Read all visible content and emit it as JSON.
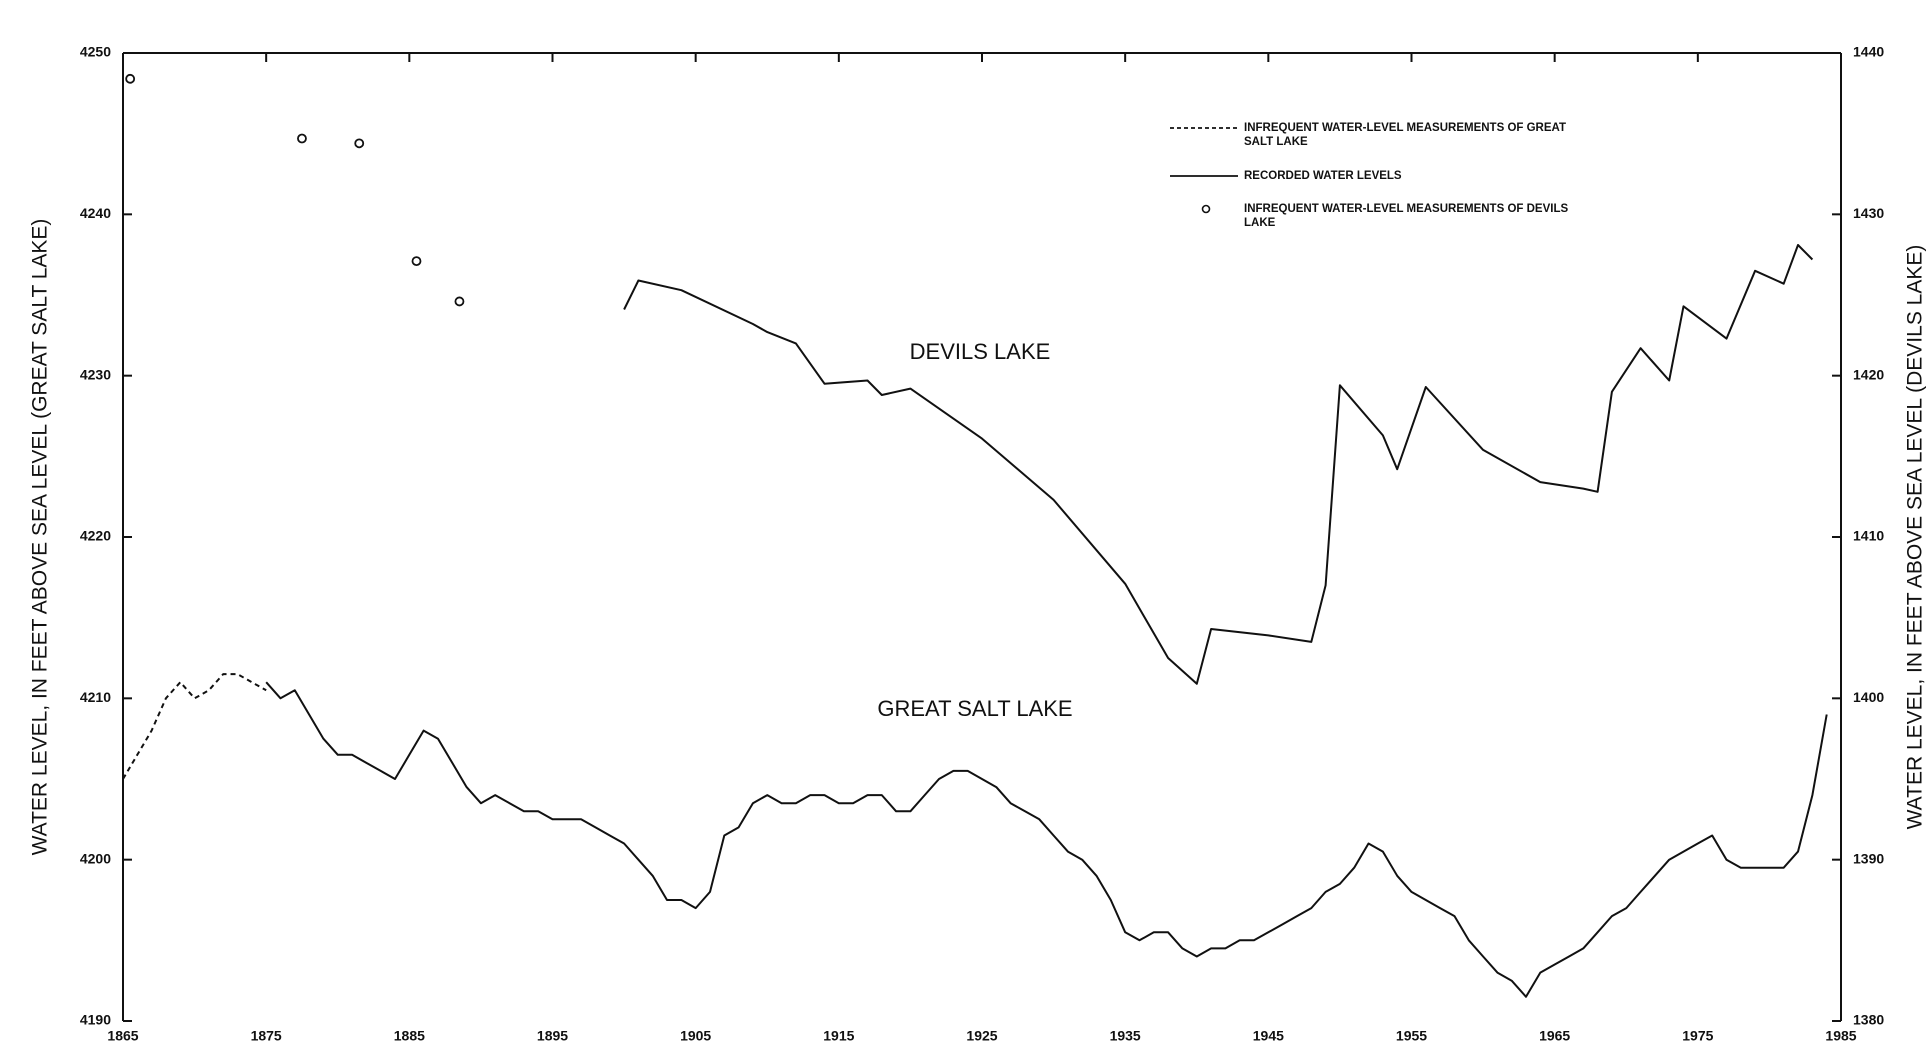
{
  "chart_data": {
    "type": "line",
    "ylabel": "WATER LEVEL, IN FEET ABOVE SEA LEVEL (GREAT SALT LAKE)",
    "y2label": "WATER LEVEL, IN FEET ABOVE SEA LEVEL (DEVILS LAKE)",
    "xlim": [
      1865,
      1985
    ],
    "xticks": [
      1865,
      1875,
      1885,
      1895,
      1905,
      1915,
      1925,
      1935,
      1945,
      1955,
      1965,
      1975,
      1985
    ],
    "ylim": [
      4190,
      4250
    ],
    "yticks": [
      4190,
      4200,
      4210,
      4220,
      4230,
      4240,
      4250
    ],
    "y2lim": [
      1380,
      1440
    ],
    "y2ticks": [
      1380,
      1390,
      1400,
      1410,
      1420,
      1430,
      1440
    ],
    "legend_position": "upper right",
    "color": "#111111",
    "annotations": [
      "DEVILS LAKE",
      "GREAT SALT LAKE"
    ],
    "legend": [
      {
        "label": "INFREQUENT WATER-LEVEL MEASUREMENTS OF GREAT SALT LAKE",
        "style": "dashed"
      },
      {
        "label": "RECORDED WATER LEVELS",
        "style": "solid"
      },
      {
        "label": "INFREQUENT WATER-LEVEL MEASUREMENTS OF DEVILS LAKE",
        "style": "circle"
      }
    ],
    "series": [
      {
        "style": "dashed",
        "axis": "y",
        "x": [
          1865,
          1866,
          1867,
          1868,
          1869,
          1870,
          1871,
          1872,
          1873,
          1874,
          1875
        ],
        "values": [
          4205,
          4206.5,
          4208,
          4210,
          4211,
          4210,
          4210.5,
          4211.5,
          4211.5,
          4211,
          4210.5
        ]
      },
      {
        "style": "solid",
        "axis": "y",
        "x": [
          1875,
          1876,
          1877,
          1878,
          1879,
          1880,
          1881,
          1882,
          1883,
          1884,
          1885,
          1886,
          1887,
          1888,
          1889,
          1890,
          1891,
          1892,
          1893,
          1894,
          1895,
          1896,
          1897,
          1898,
          1899,
          1900,
          1901,
          1902,
          1903,
          1904,
          1905,
          1906,
          1907,
          1908,
          1909,
          1910,
          1911,
          1912,
          1913,
          1914,
          1915,
          1916,
          1917,
          1918,
          1919,
          1920,
          1921,
          1922,
          1923,
          1924,
          1925,
          1926,
          1927,
          1928,
          1929,
          1930,
          1931,
          1932,
          1933,
          1934,
          1935,
          1936,
          1937,
          1938,
          1939,
          1940,
          1941,
          1942,
          1943,
          1944,
          1945,
          1946,
          1947,
          1948,
          1949,
          1950,
          1951,
          1952,
          1953,
          1954,
          1955,
          1956,
          1957,
          1958,
          1959,
          1960,
          1961,
          1962,
          1963,
          1964,
          1965,
          1966,
          1967,
          1968,
          1969,
          1970,
          1971,
          1972,
          1973,
          1974,
          1975,
          1976,
          1977,
          1978,
          1979,
          1980,
          1981,
          1982,
          1983,
          1984
        ],
        "values": [
          4211,
          4210,
          4210.5,
          4209,
          4207.5,
          4206.5,
          4206.5,
          4206,
          4205.5,
          4205,
          4206.5,
          4208,
          4207.5,
          4206,
          4204.5,
          4203.5,
          4204,
          4203.5,
          4203,
          4203,
          4202.5,
          4202.5,
          4202.5,
          4202,
          4201.5,
          4201,
          4200,
          4199,
          4197.5,
          4197.5,
          4197,
          4198,
          4201.5,
          4202,
          4203.5,
          4204,
          4203.5,
          4203.5,
          4204,
          4204,
          4203.5,
          4203.5,
          4204,
          4204,
          4203,
          4203,
          4204,
          4205,
          4205.5,
          4205.5,
          4205,
          4204.5,
          4203.5,
          4203,
          4202.5,
          4201.5,
          4200.5,
          4200,
          4199,
          4197.5,
          4195.5,
          4195,
          4195.5,
          4195.5,
          4194.5,
          4194,
          4194.5,
          4194.5,
          4195,
          4195,
          4195.5,
          4196,
          4196.5,
          4197,
          4198,
          4198.5,
          4199.5,
          4201,
          4200.5,
          4199,
          4198,
          4197.5,
          4197,
          4196.5,
          4195,
          4194,
          4193,
          4192.5,
          4191.5,
          4193,
          4193.5,
          4194,
          4194.5,
          4195.5,
          4196.5,
          4197,
          4198,
          4199,
          4200,
          4200.5,
          4201,
          4201.5,
          4200,
          4199.5,
          4199.5,
          4199.5,
          4199.5,
          4200.5,
          4204,
          4209
        ]
      },
      {
        "style": "solid",
        "axis": "y2",
        "x": [
          1900,
          1901,
          1904,
          1909,
          1910,
          1912,
          1914,
          1917,
          1918,
          1920,
          1925,
          1930,
          1935,
          1938,
          1940,
          1941,
          1945,
          1948,
          1949,
          1950,
          1953,
          1954,
          1956,
          1960,
          1964,
          1967,
          1968,
          1969,
          1971,
          1973,
          1974,
          1977,
          1979,
          1981,
          1982,
          1983
        ],
        "values": [
          1424.1,
          1425.9,
          1425.3,
          1423.2,
          1422.7,
          1422,
          1419.5,
          1419.7,
          1418.8,
          1419.2,
          1416.1,
          1412.3,
          1407.1,
          1402.5,
          1400.9,
          1404.3,
          1403.9,
          1403.5,
          1407,
          1419.4,
          1416.3,
          1414.2,
          1419.3,
          1415.4,
          1413.4,
          1413,
          1412.8,
          1419,
          1421.7,
          1419.7,
          1424.3,
          1422.3,
          1426.5,
          1425.7,
          1428.1,
          1427.2
        ]
      },
      {
        "style": "circle",
        "axis": "y2",
        "x": [
          1865.5,
          1877.5,
          1881.5,
          1885.5,
          1888.5
        ],
        "values": [
          1438.4,
          1434.7,
          1434.4,
          1427.1,
          1424.6
        ]
      }
    ]
  }
}
